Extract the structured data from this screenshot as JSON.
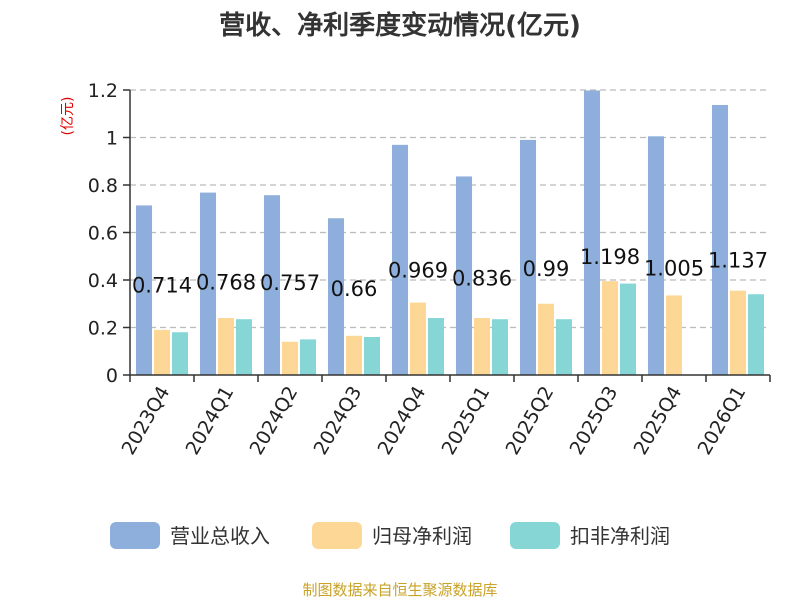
{
  "chart_data": {
    "type": "bar",
    "title": "营收、净利季度变动情况(亿元)",
    "ylabel": "(亿元)",
    "ylim": [
      0,
      1.2
    ],
    "yticks": [
      0,
      0.2,
      0.4,
      0.6,
      0.8,
      1,
      1.2
    ],
    "ytick_labels": [
      "0",
      "0.2",
      "0.4",
      "0.6",
      "0.8",
      "1",
      "1.2"
    ],
    "grid": true,
    "legend_position": "bottom",
    "categories": [
      "2023Q4",
      "2024Q1",
      "2024Q2",
      "2024Q3",
      "2024Q4",
      "2025Q1",
      "2025Q2",
      "2025Q3",
      "2025Q4",
      "2026Q1"
    ],
    "series": [
      {
        "name": "营业总收入",
        "color": "#8eaedc",
        "values": [
          0.714,
          0.768,
          0.757,
          0.66,
          0.969,
          0.836,
          0.99,
          1.198,
          1.005,
          1.137
        ],
        "data_labels": [
          "0.714",
          "0.768",
          "0.757",
          "0.66",
          "0.969",
          "0.836",
          "0.99",
          "1.198",
          "1.005",
          "1.137"
        ]
      },
      {
        "name": "归母净利润",
        "color": "#fdd795",
        "values": [
          0.19,
          0.24,
          0.14,
          0.165,
          0.305,
          0.24,
          0.3,
          0.395,
          0.335,
          0.355
        ]
      },
      {
        "name": "扣非净利润",
        "color": "#87d6d6",
        "values": [
          0.18,
          0.235,
          0.15,
          0.16,
          0.24,
          0.235,
          0.235,
          0.385,
          null,
          0.34
        ]
      }
    ]
  },
  "source": "制图数据来自恒生聚源数据库"
}
